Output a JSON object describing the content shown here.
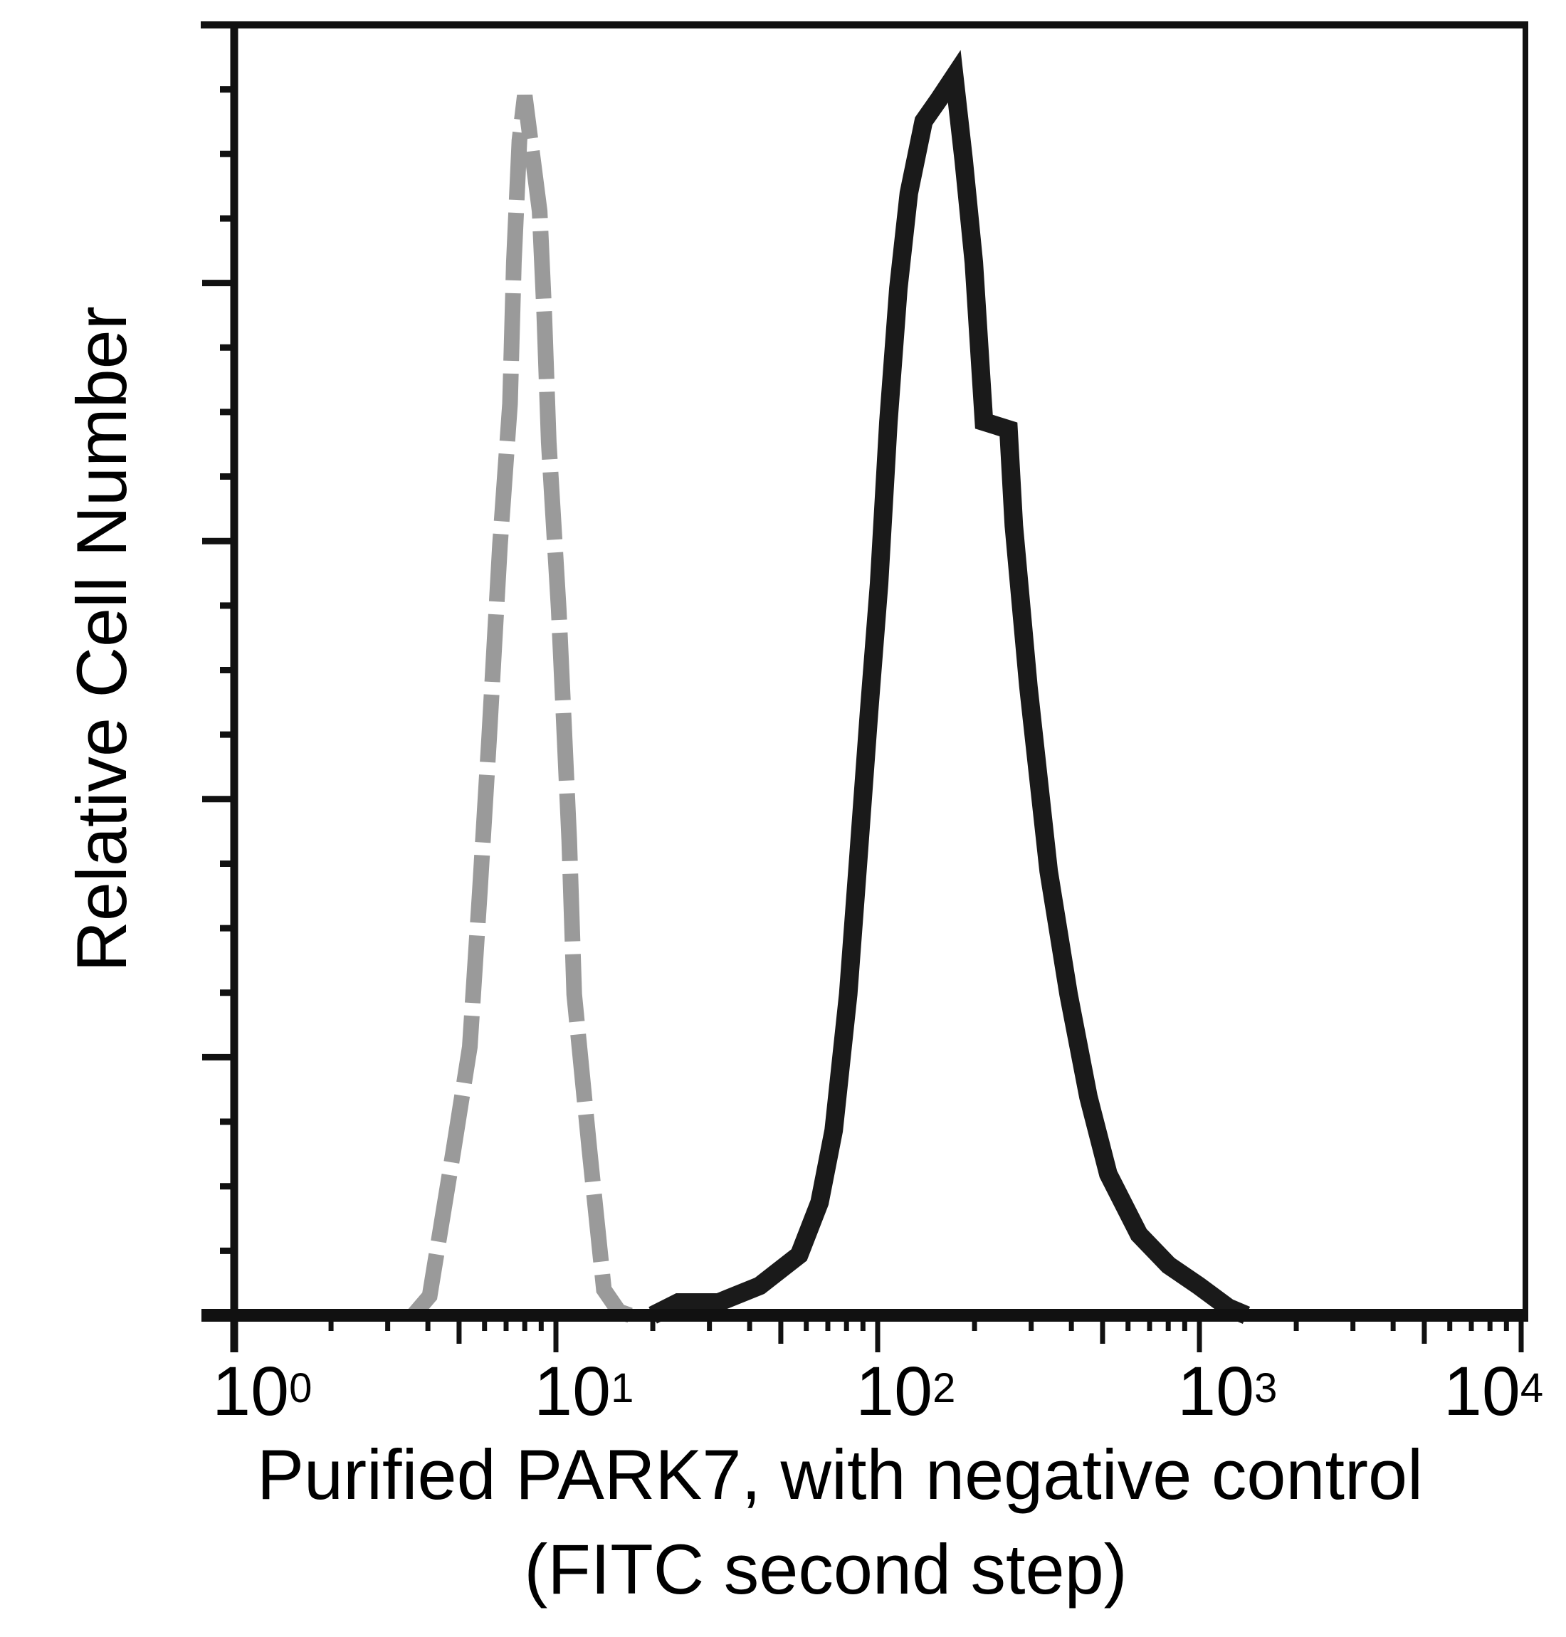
{
  "chart_data": {
    "type": "line",
    "title": "",
    "xlabel": "Purified PARK7, with negative control (FITC second step)",
    "xlabel_lines": [
      "Purified PARK7, with negative control",
      "(FITC second step)"
    ],
    "ylabel": "Relative Cell Number",
    "xscale": "log",
    "xlim": [
      1,
      10000
    ],
    "ylim": [
      0,
      100
    ],
    "x_ticks": [
      {
        "value": 1,
        "base": "10",
        "exp": "0"
      },
      {
        "value": 10,
        "base": "10",
        "exp": "1"
      },
      {
        "value": 100,
        "base": "10",
        "exp": "2"
      },
      {
        "value": 1000,
        "base": "10",
        "exp": "3"
      },
      {
        "value": 10000,
        "base": "10",
        "exp": "4"
      }
    ],
    "y_ticks_labeled": false,
    "y_major_ticks": [
      0,
      20,
      40,
      60,
      80,
      100
    ],
    "y_minor_step": 5,
    "grid": false,
    "legend": null,
    "series": [
      {
        "name": "Negative control",
        "style": "dashed",
        "color": "#9a9a9a",
        "x": [
          3.6,
          4.05,
          4.8,
          5.4,
          5.8,
          6.2,
          6.7,
          7.2,
          7.4,
          7.7,
          8.0,
          8.9,
          9.2,
          9.5,
          10.2,
          11.0,
          11.4,
          12.7,
          14.1,
          15.7,
          17
        ],
        "y": [
          0,
          1.5,
          12.8,
          20.9,
          33,
          45,
          60,
          71,
          82,
          91.5,
          95,
          86,
          78,
          68,
          55,
          37,
          25,
          13,
          2,
          0.3,
          0
        ]
      },
      {
        "name": "Purified PARK7",
        "style": "solid",
        "color": "#1a1a1a",
        "x": [
          20,
          24,
          32,
          43,
          57,
          66,
          73,
          81,
          87,
          94,
          101,
          108,
          116,
          125,
          139,
          155,
          173,
          185,
          199,
          214,
          255,
          265,
          294,
          340,
          392,
          452,
          521,
          649,
          802,
          995,
          1230,
          1400
        ],
        "y": [
          0,
          1,
          1,
          2.3,
          4.7,
          8.8,
          14.4,
          25,
          35.5,
          47,
          57,
          69.6,
          80,
          87.4,
          93,
          94.7,
          96.5,
          90,
          82,
          69.6,
          69,
          61.5,
          49,
          34.6,
          25,
          17,
          11,
          6.3,
          3.9,
          2.3,
          0.6,
          0
        ]
      }
    ]
  }
}
